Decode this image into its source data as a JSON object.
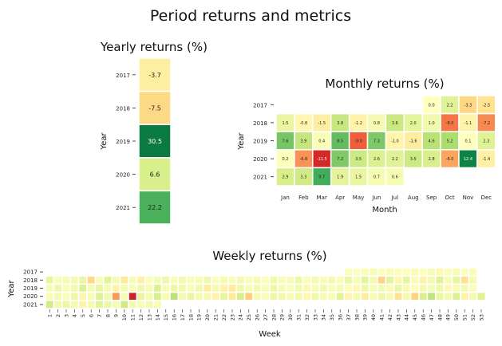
{
  "figure_title": "Period returns and metrics",
  "chart_data": [
    {
      "type": "heatmap",
      "title": "Yearly returns (%)",
      "xlabel": "",
      "ylabel": "Year",
      "years": [
        "2017",
        "2018",
        "2019",
        "2020",
        "2021"
      ],
      "values": [
        -3.7,
        -7.5,
        30.5,
        6.6,
        22.2
      ],
      "labels": [
        "-3.7",
        "-7.5",
        "30.5",
        "6.6",
        "22.2"
      ]
    },
    {
      "type": "heatmap",
      "title": "Monthly returns (%)",
      "xlabel": "Month",
      "ylabel": "Year",
      "years": [
        "2017",
        "2018",
        "2019",
        "2020",
        "2021"
      ],
      "months": [
        "Jan",
        "Feb",
        "Mar",
        "Apr",
        "May",
        "Jun",
        "Jul",
        "Aug",
        "Sep",
        "Oct",
        "Nov",
        "Dec"
      ],
      "values": [
        [
          null,
          null,
          null,
          null,
          null,
          null,
          null,
          null,
          0.0,
          2.2,
          -3.3,
          -2.5
        ],
        [
          1.5,
          -0.8,
          -1.5,
          3.8,
          -1.2,
          0.8,
          3.6,
          2.0,
          1.0,
          -8.0,
          -1.1,
          -7.2
        ],
        [
          7.6,
          3.9,
          0.4,
          8.5,
          -9.0,
          7.3,
          -1.0,
          -1.6,
          4.6,
          5.2,
          0.1,
          2.3
        ],
        [
          0.2,
          -6.8,
          -11.5,
          7.2,
          3.5,
          2.6,
          2.2,
          3.5,
          2.8,
          -6.0,
          12.4,
          -1.4
        ],
        [
          2.9,
          3.3,
          9.7,
          1.9,
          1.5,
          0.7,
          0.6,
          null,
          null,
          null,
          null,
          null
        ]
      ],
      "labels": [
        [
          "",
          "",
          "",
          "",
          "",
          "",
          "",
          "",
          "0.0",
          "2.2",
          "-3.3",
          "-2.5"
        ],
        [
          "1.5",
          "-0.8",
          "-1.5",
          "3.8",
          "-1.2",
          "0.8",
          "3.6",
          "2.0",
          "1.0",
          "-8.0",
          "-1.1",
          "-7.2"
        ],
        [
          "7.6",
          "3.9",
          "0.4",
          "8.5",
          "-9.0",
          "7.3",
          "-1.0",
          "-1.6",
          "4.6",
          "5.2",
          "0.1",
          "2.3"
        ],
        [
          "0.2",
          "-6.8",
          "-11.5",
          "7.2",
          "3.5",
          "2.6",
          "2.2",
          "3.5",
          "2.8",
          "-6.0",
          "12.4",
          "-1.4"
        ],
        [
          "2.9",
          "3.3",
          "9.7",
          "1.9",
          "1.5",
          "0.7",
          "0.6",
          "",
          "",
          "",
          "",
          ""
        ]
      ]
    },
    {
      "type": "heatmap",
      "title": "Weekly returns (%)",
      "xlabel": "Week",
      "ylabel": "Year",
      "years": [
        "2017",
        "2018",
        "2019",
        "2020",
        "2021"
      ],
      "weeks": [
        "1",
        "2",
        "3",
        "4",
        "5",
        "6",
        "7",
        "8",
        "9",
        "10",
        "11",
        "12",
        "13",
        "14",
        "15",
        "16",
        "17",
        "18",
        "19",
        "20",
        "21",
        "22",
        "23",
        "24",
        "25",
        "26",
        "27",
        "28",
        "29",
        "30",
        "31",
        "32",
        "33",
        "34",
        "35",
        "36",
        "37",
        "38",
        "39",
        "40",
        "41",
        "42",
        "43",
        "44",
        "45",
        "46",
        "47",
        "48",
        "49",
        "50",
        "51",
        "52",
        "53"
      ],
      "values": [
        [
          null,
          null,
          null,
          null,
          null,
          null,
          null,
          null,
          null,
          null,
          null,
          null,
          null,
          null,
          null,
          null,
          null,
          null,
          null,
          null,
          null,
          null,
          null,
          null,
          null,
          null,
          null,
          null,
          null,
          null,
          null,
          null,
          null,
          null,
          null,
          null,
          0.3,
          0.2,
          0.4,
          0.6,
          0.2,
          0.5,
          0.3,
          0.1,
          0.4,
          0.2,
          0.6,
          -0.8,
          0.3,
          0.5,
          0.2,
          0.4,
          null
        ],
        [
          1.8,
          0.4,
          0.6,
          0.9,
          1.4,
          -3.2,
          0.5,
          2.1,
          0.8,
          -1.9,
          0.6,
          -1.4,
          0.3,
          0.7,
          1.2,
          0.5,
          0.9,
          0.4,
          0.6,
          1.1,
          0.3,
          0.8,
          0.5,
          0.9,
          0.4,
          0.7,
          0.3,
          1.0,
          0.5,
          0.6,
          1.3,
          0.4,
          0.8,
          0.5,
          0.9,
          0.4,
          1.5,
          0.6,
          2.0,
          0.8,
          -3.4,
          1.9,
          -0.9,
          1.7,
          0.5,
          -1.3,
          0.9,
          2.2,
          0.6,
          1.8,
          -2.6,
          0.8,
          null
        ],
        [
          0.6,
          1.2,
          0.5,
          0.9,
          2.4,
          0.7,
          1.5,
          0.6,
          -1.1,
          0.8,
          0.5,
          1.1,
          0.7,
          2.5,
          0.6,
          1.3,
          0.9,
          0.5,
          1.0,
          -1.6,
          0.8,
          -1.3,
          -1.8,
          1.1,
          0.6,
          0.9,
          0.5,
          1.2,
          0.7,
          0.4,
          0.9,
          -0.8,
          0.6,
          1.1,
          0.5,
          0.8,
          0.4,
          -0.7,
          1.2,
          0.6,
          0.9,
          0.5,
          1.4,
          0.7,
          0.4,
          0.9,
          0.6,
          1.1,
          -0.6,
          0.5,
          0.8,
          0.3,
          null
        ],
        [
          0.5,
          0.8,
          0.4,
          1.3,
          -0.9,
          0.6,
          2.2,
          0.9,
          -6.5,
          0.7,
          -12.0,
          1.6,
          0.8,
          2.8,
          0.6,
          4.5,
          0.8,
          1.4,
          0.7,
          0.9,
          -1.2,
          1.6,
          -1.8,
          2.9,
          -3.8,
          0.7,
          0.5,
          1.2,
          1.0,
          0.6,
          0.9,
          -0.8,
          1.1,
          0.7,
          0.5,
          2.1,
          -0.9,
          0.8,
          -1.6,
          0.6,
          1.2,
          0.7,
          -2.5,
          0.9,
          -3.5,
          2.8,
          4.2,
          1.5,
          0.9,
          2.4,
          -1.1,
          0.8,
          2.3
        ],
        [
          3.2,
          0.9,
          1.3,
          0.8,
          -1.2,
          0.7,
          2.1,
          1.3,
          0.6,
          3.3,
          0.8,
          0.6,
          0.9,
          0.5,
          null,
          null,
          null,
          null,
          null,
          null,
          null,
          null,
          null,
          null,
          null,
          null,
          null,
          null,
          null,
          null,
          null,
          null,
          null,
          null,
          null,
          null,
          null,
          null,
          null,
          null,
          null,
          null,
          null,
          null,
          null,
          null,
          null,
          null,
          null,
          null,
          null,
          null,
          null
        ]
      ]
    }
  ]
}
